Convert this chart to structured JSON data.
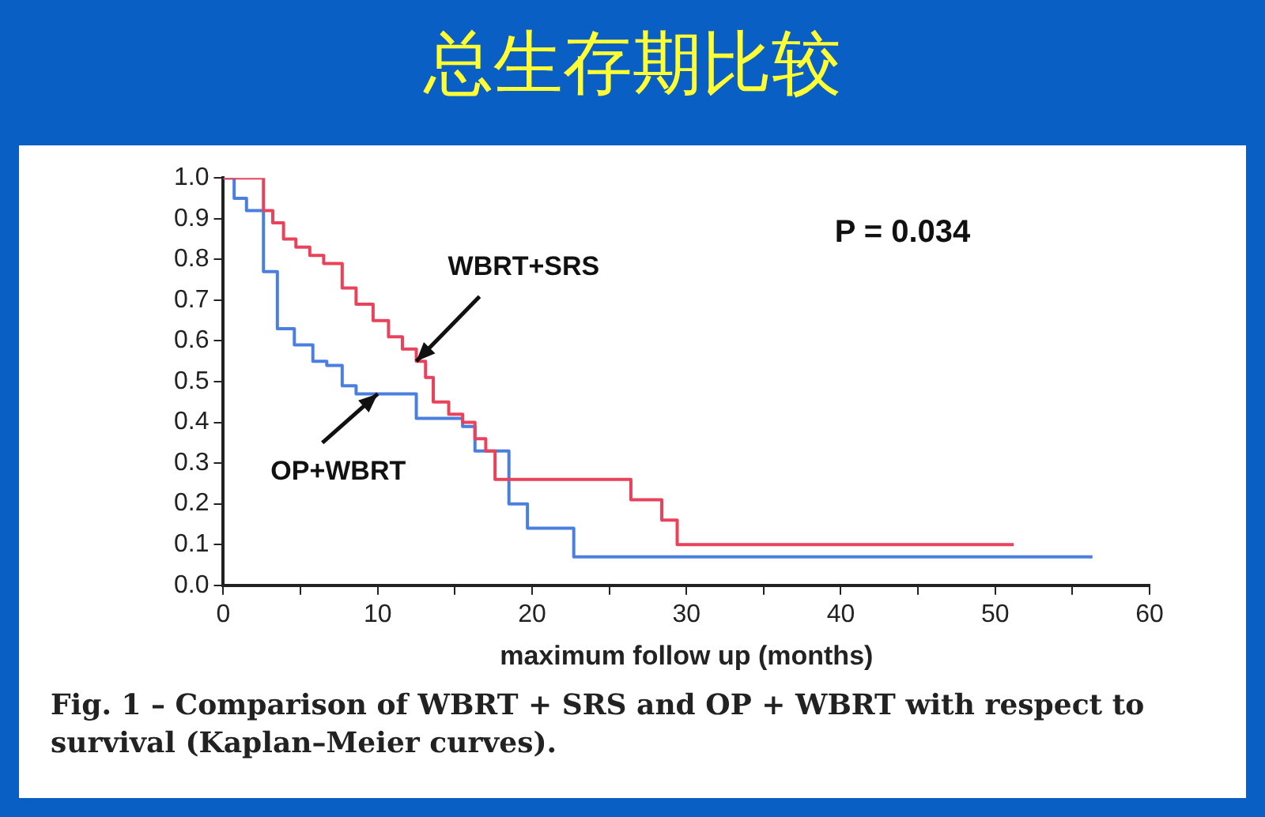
{
  "chart_data": {
    "type": "step",
    "title": "总生存期比较",
    "xlabel": "maximum follow up (months)",
    "xlim": [
      0,
      60
    ],
    "ylim": [
      0,
      1
    ],
    "xticks": [
      0,
      {
        "value": 5,
        "label": null
      },
      10,
      {
        "value": 15,
        "label": null
      },
      20,
      {
        "value": 25,
        "label": null
      },
      30,
      {
        "value": 35,
        "label": null
      },
      40,
      {
        "value": 45,
        "label": null
      },
      50,
      {
        "value": 55,
        "label": null
      },
      60
    ],
    "yticks": [
      {
        "value": 0,
        "label": "0.0"
      },
      {
        "value": 0.1,
        "label": "0.1"
      },
      {
        "value": 0.2,
        "label": "0.2"
      },
      {
        "value": 0.3,
        "label": "0.3"
      },
      {
        "value": 0.4,
        "label": "0.4"
      },
      {
        "value": 0.5,
        "label": "0.5"
      },
      {
        "value": 0.6,
        "label": "0.6"
      },
      {
        "value": 0.7,
        "label": "0.7"
      },
      {
        "value": 0.8,
        "label": "0.8"
      },
      {
        "value": 0.9,
        "label": "0.9"
      },
      {
        "value": 1,
        "label": "1.0"
      }
    ],
    "grid": false,
    "legend": false,
    "marker": "none",
    "series": [
      {
        "color": "#e8435a",
        "x": [
          0,
          2.6,
          3.2,
          3.9,
          4.7,
          5.6,
          6.5,
          7.7,
          8.6,
          9.7,
          10.7,
          11.6,
          12.5,
          13.1,
          13.6,
          14.6,
          15.5,
          16.3,
          17,
          17.6,
          26.4,
          28.4,
          29.4,
          51.2
        ],
        "values": [
          1,
          0.92,
          0.89,
          0.85,
          0.83,
          0.81,
          0.79,
          0.73,
          0.69,
          0.65,
          0.61,
          0.58,
          0.55,
          0.51,
          0.45,
          0.42,
          0.4,
          0.36,
          0.33,
          0.26,
          0.21,
          0.16,
          0.1,
          0.1
        ]
      },
      {
        "color": "#4a7fe0",
        "x": [
          0,
          0.7,
          1.5,
          2.6,
          3.5,
          4.6,
          5.8,
          6.7,
          7.7,
          8.6,
          12.5,
          15.5,
          16.3,
          18.5,
          19.7,
          22.7,
          56.3
        ],
        "values": [
          1,
          0.95,
          0.92,
          0.77,
          0.63,
          0.59,
          0.55,
          0.54,
          0.49,
          0.47,
          0.41,
          0.39,
          0.33,
          0.2,
          0.14,
          0.07,
          0.07
        ]
      }
    ],
    "annotations": [
      {
        "text": "WBRT+SRS",
        "x": 12.5,
        "y": 0.55
      },
      {
        "text": "OP+WBRT",
        "x": 10,
        "y": 0.47
      },
      "P = 0.034",
      "Fig. 1 – Comparison of WBRT + SRS and OP + WBRT with respect to survival (Kaplan–Meier curves)."
    ]
  }
}
